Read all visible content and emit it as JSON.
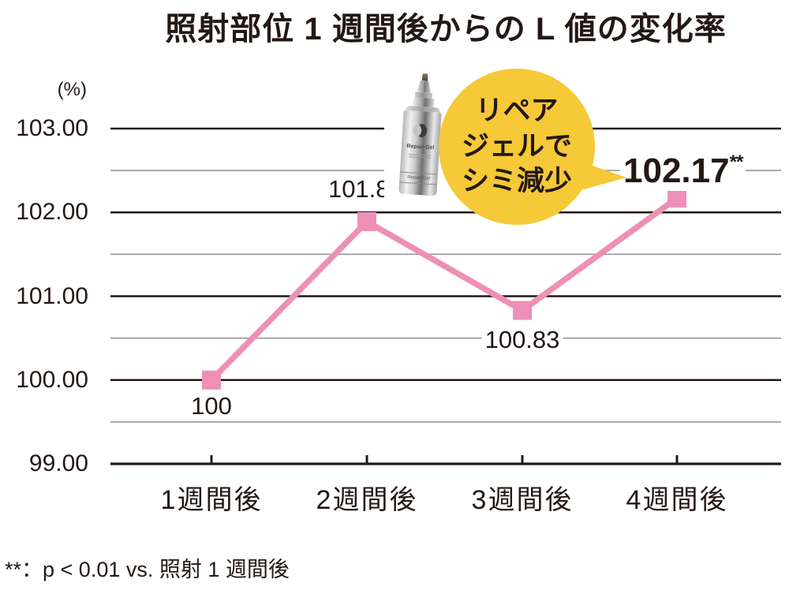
{
  "title": "照射部位 1 週間後からの L 値の変化率",
  "y_axis_unit_label": "(%)",
  "footnote": "**：p < 0.01 vs. 照射 1 週間後",
  "bubble": {
    "lines": [
      "リペア",
      "ジェルで",
      "シミ減少"
    ]
  },
  "product_bottle": {
    "label_text": "Repair Gel",
    "band_text": "Repair Gel"
  },
  "colors": {
    "ink": "#231815",
    "accent_pink": "#ee90b6",
    "bubble_yellow": "#f5c937",
    "grid_minor": "#8f8f8f"
  },
  "chart_data": {
    "type": "line",
    "title": "照射部位 1 週間後からの L 値の変化率",
    "ylabel": "(%)",
    "categories": [
      "1週間後",
      "2週間後",
      "3週間後",
      "4週間後"
    ],
    "values": [
      100,
      101.89,
      100.83,
      102.17
    ],
    "point_labels": [
      {
        "text": "100",
        "sup": ""
      },
      {
        "text": "101.89",
        "sup": "**"
      },
      {
        "text": "100.83",
        "sup": ""
      },
      {
        "text": "102.17",
        "sup": "**"
      }
    ],
    "ylim": [
      99,
      103
    ],
    "y_ticks": [
      {
        "value": 103,
        "label": "103.00"
      },
      {
        "value": 102,
        "label": "102.00"
      },
      {
        "value": 101,
        "label": "101.00"
      },
      {
        "value": 100,
        "label": "100.00"
      },
      {
        "value": 99,
        "label": "99.00"
      }
    ],
    "y_minor_step": 0.5,
    "grid": true,
    "legend": false,
    "line_color": "#ee90b6",
    "marker_style": "square",
    "annotation": "リペアジェルでシミ減少"
  }
}
